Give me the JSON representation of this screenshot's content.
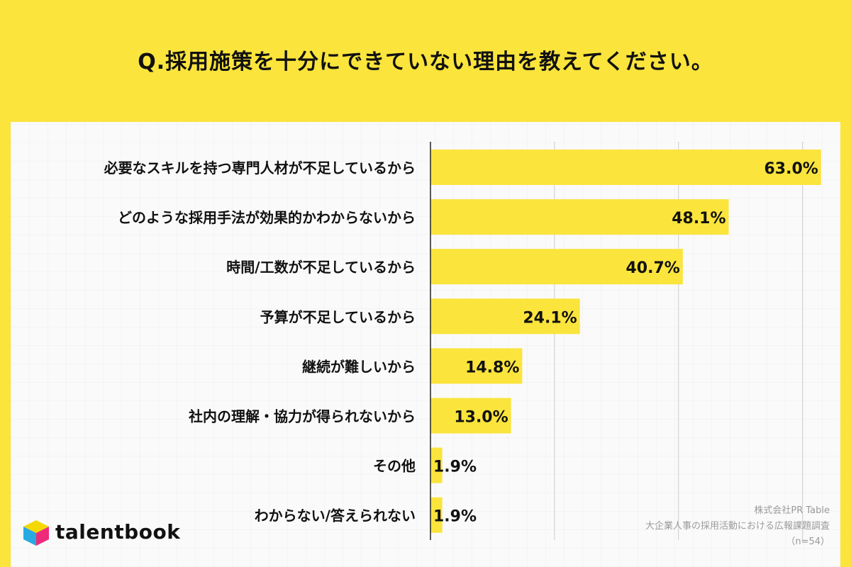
{
  "title": "Q.採用施策を十分にできていない理由を教えてください。",
  "colors": {
    "background": "#FBE43C",
    "bar": "#FBE43C",
    "panel": "#FAFAFA",
    "gridline": "#CCCCCC",
    "axis": "#222222"
  },
  "chart_data": {
    "type": "bar",
    "orientation": "horizontal",
    "categories": [
      "必要なスキルを持つ専門人材が不足しているから",
      "どのような採用手法が効果的かわからないから",
      "時間/工数が不足しているから",
      "予算が不足しているから",
      "継続が難しいから",
      "社内の理解・協力が得られないから",
      "その他",
      "わからない/答えられない"
    ],
    "values": [
      63.0,
      48.1,
      40.7,
      24.1,
      14.8,
      13.0,
      1.9,
      1.9
    ],
    "data_labels": [
      "63.0%",
      "48.1%",
      "40.7%",
      "24.1%",
      "14.8%",
      "13.0%",
      "1.9%",
      "1.9%"
    ],
    "xlim": [
      0,
      70
    ],
    "grid": true
  },
  "source": {
    "company": "株式会社PR Table",
    "survey": "大企業人事の採用活動における広報課題調査",
    "sample": "（n=54）"
  },
  "logo": {
    "text": "talentbook",
    "icon": "talentbook-cube-icon"
  }
}
